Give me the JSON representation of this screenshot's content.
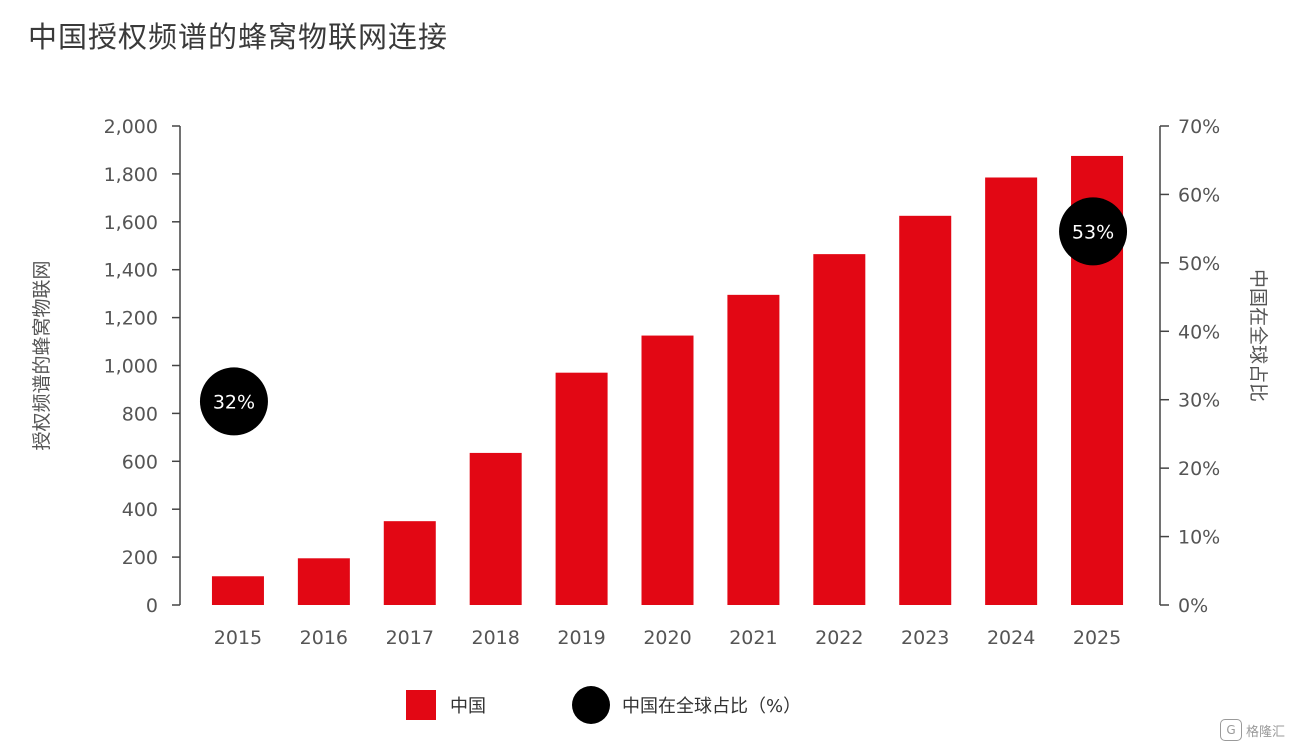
{
  "title": "中国授权频谱的蜂窝物联网连接",
  "chart_data": {
    "type": "bar",
    "categories": [
      "2015",
      "2016",
      "2017",
      "2018",
      "2019",
      "2020",
      "2021",
      "2022",
      "2023",
      "2024",
      "2025"
    ],
    "series": [
      {
        "name": "中国",
        "values": [
          120,
          195,
          350,
          635,
          970,
          1125,
          1295,
          1465,
          1625,
          1785,
          1875
        ],
        "color": "#e20714"
      }
    ],
    "share_markers": [
      {
        "category": "2015",
        "label": "32%",
        "y_left": 850
      },
      {
        "category": "2025",
        "label": "53%",
        "y_left": 1560
      }
    ],
    "ylabel": "授权频谱的蜂窝物联网",
    "ylim": [
      0,
      2000
    ],
    "yticks": [
      "0",
      "200",
      "400",
      "600",
      "800",
      "1,000",
      "1,200",
      "1,400",
      "1,600",
      "1,800",
      "2,000"
    ],
    "y2label": "中国在全球占比",
    "y2lim": [
      0,
      70
    ],
    "y2ticks": [
      "0%",
      "10%",
      "20%",
      "30%",
      "40%",
      "50%",
      "60%",
      "70%"
    ],
    "grid": false
  },
  "legend": {
    "bar_label": "中国",
    "dot_label": "中国在全球占比（%）"
  },
  "watermark": {
    "logo_text": "G",
    "text": "格隆汇"
  }
}
